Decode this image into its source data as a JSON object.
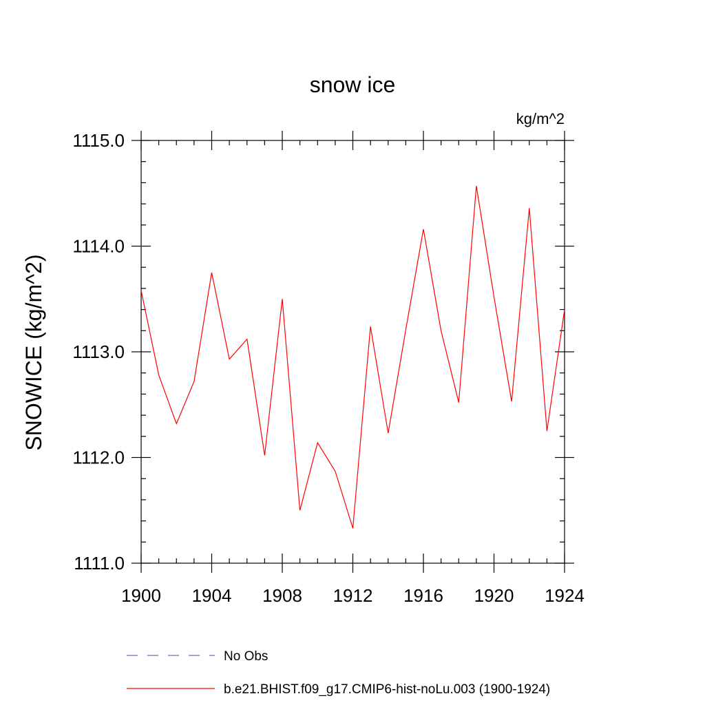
{
  "chart_data": {
    "type": "line",
    "title": "snow ice",
    "units_label": "kg/m^2",
    "ylabel": "SNOWICE  (kg/m^2)",
    "xlabel": "",
    "xlim": [
      1900,
      1924
    ],
    "ylim": [
      1111.0,
      1115.0
    ],
    "x_ticks": [
      1900,
      1904,
      1908,
      1912,
      1916,
      1920,
      1924
    ],
    "x_tick_labels": [
      "1900",
      "1904",
      "1908",
      "1912",
      "1916",
      "1920",
      "1924"
    ],
    "y_ticks": [
      1111.0,
      1112.0,
      1113.0,
      1114.0,
      1115.0
    ],
    "y_tick_labels": [
      "1111.0",
      "1112.0",
      "1113.0",
      "1114.0",
      "1115.0"
    ],
    "grid": false,
    "legend_position": "bottom",
    "series": [
      {
        "name": "b.e21.BHIST.f09_g17.CMIP6-hist-noLu.003 (1900-1924)",
        "color": "#ff0000",
        "style": "solid",
        "x": [
          1900,
          1901,
          1902,
          1903,
          1904,
          1905,
          1906,
          1907,
          1908,
          1909,
          1910,
          1911,
          1912,
          1913,
          1914,
          1915,
          1916,
          1917,
          1918,
          1919,
          1920,
          1921,
          1922,
          1923,
          1924
        ],
        "values": [
          1113.58,
          1112.78,
          1112.32,
          1112.72,
          1113.75,
          1112.93,
          1113.12,
          1112.02,
          1113.5,
          1111.5,
          1112.14,
          1111.87,
          1111.33,
          1113.24,
          1112.23,
          1113.21,
          1114.16,
          1113.2,
          1112.52,
          1114.57,
          1113.52,
          1112.53,
          1114.36,
          1112.25,
          1113.4
        ]
      }
    ],
    "legend": [
      {
        "label": "No Obs",
        "color": "#6a6ab0",
        "style": "dashed"
      },
      {
        "label": "b.e21.BHIST.f09_g17.CMIP6-hist-noLu.003 (1900-1924)",
        "color": "#ff0000",
        "style": "solid"
      }
    ]
  }
}
